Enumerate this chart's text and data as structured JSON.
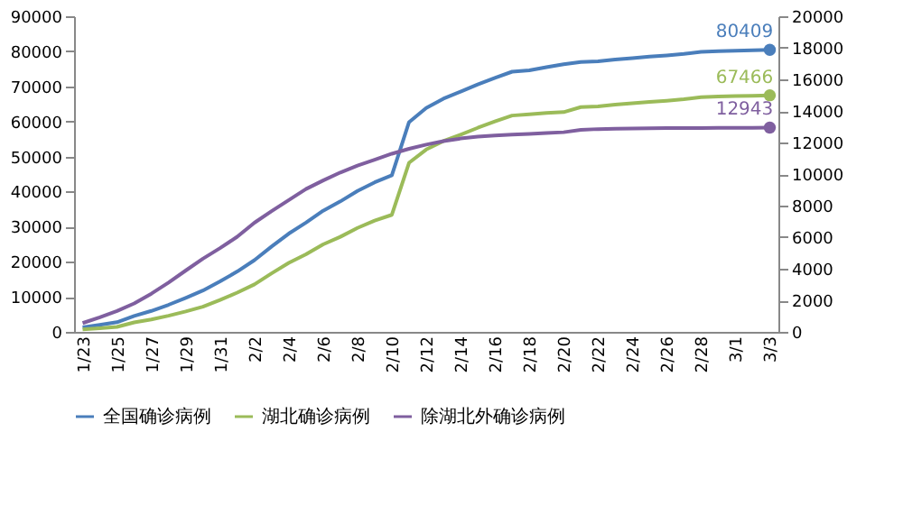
{
  "chart_data": {
    "type": "line",
    "categories": [
      "1/23",
      null,
      "1/25",
      null,
      "1/27",
      null,
      "1/29",
      null,
      "1/31",
      null,
      "2/2",
      null,
      "2/4",
      null,
      "2/6",
      null,
      "2/8",
      null,
      "2/10",
      null,
      "2/12",
      null,
      "2/14",
      null,
      "2/16",
      null,
      "2/18",
      null,
      "2/20",
      null,
      "2/22",
      null,
      "2/24",
      null,
      "2/26",
      null,
      "2/28",
      null,
      "3/1",
      null,
      "3/3"
    ],
    "series": [
      {
        "name": "全国确诊病例",
        "color": "#4a7ebb",
        "values": [
          1287,
          1975,
          2744,
          4515,
          5974,
          7711,
          9692,
          11791,
          14380,
          17205,
          20438,
          24324,
          28018,
          31161,
          34546,
          37198,
          40171,
          42638,
          44653,
          59804,
          63851,
          66492,
          68500,
          70548,
          72436,
          74185,
          74576,
          75465,
          76288,
          76936,
          77150,
          77658,
          78064,
          78497,
          78824,
          79251,
          79824,
          80026,
          80151,
          80270,
          80409
        ],
        "value_labels": [
          null,
          null,
          null,
          null,
          null,
          null,
          null,
          null,
          null,
          null,
          null,
          null,
          null,
          null,
          null,
          null,
          null,
          null,
          null,
          null,
          null,
          null,
          null,
          null,
          null,
          null,
          null,
          null,
          null,
          null,
          null,
          null,
          null,
          null,
          null,
          null,
          null,
          null,
          null,
          null,
          "80409"
        ]
      },
      {
        "name": "湖北确诊病例",
        "color": "#9bbb59",
        "values": [
          729,
          1052,
          1423,
          2714,
          3554,
          4586,
          5806,
          7153,
          9074,
          11177,
          13522,
          16678,
          19665,
          22112,
          24953,
          27100,
          29631,
          31728,
          33366,
          48206,
          51986,
          54406,
          56249,
          58182,
          59989,
          61682,
          62031,
          62442,
          62662,
          64084,
          64287,
          64786,
          65187,
          65596,
          65914,
          66337,
          66907,
          67103,
          67217,
          67332,
          67466
        ],
        "value_labels": [
          null,
          null,
          null,
          null,
          null,
          null,
          null,
          null,
          null,
          null,
          null,
          null,
          null,
          null,
          null,
          null,
          null,
          null,
          null,
          null,
          null,
          null,
          null,
          null,
          null,
          null,
          null,
          null,
          null,
          null,
          null,
          null,
          null,
          null,
          null,
          null,
          null,
          null,
          null,
          null,
          "67466"
        ]
      },
      {
        "name": "除湖北外确诊病例",
        "color": "#7f5f9f",
        "axis": "y2",
        "values": [
          558,
          923,
          1321,
          1801,
          2420,
          3125,
          3886,
          4638,
          5306,
          6028,
          6916,
          7646,
          8353,
          9049,
          9593,
          10098,
          10540,
          10910,
          11287,
          11598,
          11865,
          12086,
          12251,
          12366,
          12447,
          12503,
          12545,
          12600,
          12650,
          12800,
          12850,
          12870,
          12880,
          12900,
          12910,
          12915,
          12920,
          12925,
          12930,
          12935,
          12943
        ],
        "value_labels": [
          null,
          null,
          null,
          null,
          null,
          null,
          null,
          null,
          null,
          null,
          null,
          null,
          null,
          null,
          null,
          null,
          null,
          null,
          null,
          null,
          null,
          null,
          null,
          null,
          null,
          null,
          null,
          null,
          null,
          null,
          null,
          null,
          null,
          null,
          null,
          null,
          null,
          null,
          null,
          null,
          "12943"
        ]
      }
    ],
    "ylim": [
      0,
      90000
    ],
    "yticks": [
      0,
      10000,
      20000,
      30000,
      40000,
      50000,
      60000,
      70000,
      80000,
      90000
    ],
    "y2lim": [
      0,
      20000
    ],
    "y2ticks": [
      0,
      2000,
      4000,
      6000,
      8000,
      10000,
      12000,
      14000,
      16000,
      18000,
      20000
    ],
    "legend": "bottom",
    "grid": false
  }
}
